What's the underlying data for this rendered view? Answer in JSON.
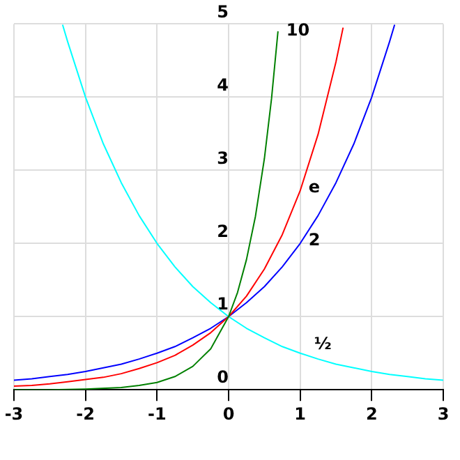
{
  "chart_data": {
    "type": "line",
    "xlim": [
      -3,
      3
    ],
    "xticks": [
      -3,
      -2,
      -1,
      0,
      1,
      2,
      3
    ],
    "ylim": [
      0,
      5
    ],
    "yticks": [
      0,
      1,
      2,
      3,
      4,
      5
    ],
    "grid": true,
    "legend": false,
    "marker": "none",
    "line_style": "solid",
    "series": [
      {
        "name": "10",
        "color": "#008000",
        "x": [
          -3,
          -2.5,
          -2,
          -1.5,
          -1.25,
          -1,
          -0.75,
          -0.5,
          -0.25,
          0,
          0.125,
          0.25,
          0.375,
          0.5,
          0.6,
          0.69
        ],
        "values": [
          0,
          0,
          0.01,
          0.03,
          0.06,
          0.1,
          0.18,
          0.32,
          0.56,
          1,
          1.33,
          1.78,
          2.37,
          3.16,
          3.98,
          4.9
        ]
      },
      {
        "name": "e",
        "color": "#ff0000",
        "x": [
          -3,
          -2.75,
          -2.5,
          -2.25,
          -2,
          -1.75,
          -1.5,
          -1.25,
          -1,
          -0.75,
          -0.5,
          -0.25,
          0,
          0.25,
          0.5,
          0.75,
          1,
          1.25,
          1.5,
          1.6
        ],
        "values": [
          0.05,
          0.06,
          0.08,
          0.11,
          0.14,
          0.17,
          0.22,
          0.29,
          0.37,
          0.47,
          0.61,
          0.78,
          1,
          1.28,
          1.65,
          2.12,
          2.72,
          3.49,
          4.48,
          4.95
        ]
      },
      {
        "name": "2",
        "color": "#0000ff",
        "x": [
          -3,
          -2.75,
          -2.5,
          -2.25,
          -2,
          -1.75,
          -1.5,
          -1.25,
          -1,
          -0.75,
          -0.5,
          -0.25,
          0,
          0.25,
          0.5,
          0.75,
          1,
          1.25,
          1.5,
          1.75,
          2,
          2.25,
          2.32
        ],
        "values": [
          0.13,
          0.15,
          0.18,
          0.21,
          0.25,
          0.3,
          0.35,
          0.42,
          0.5,
          0.59,
          0.71,
          0.84,
          1,
          1.19,
          1.41,
          1.68,
          2,
          2.38,
          2.83,
          3.36,
          4,
          4.76,
          4.99
        ]
      },
      {
        "name": "½",
        "color": "#00ffff",
        "x": [
          -2.32,
          -2.25,
          -2,
          -1.75,
          -1.5,
          -1.25,
          -1,
          -0.75,
          -0.5,
          -0.25,
          0,
          0.25,
          0.5,
          0.75,
          1,
          1.25,
          1.5,
          1.75,
          2,
          2.25,
          2.5,
          2.75,
          3
        ],
        "values": [
          4.99,
          4.76,
          4,
          3.36,
          2.83,
          2.38,
          2,
          1.68,
          1.41,
          1.19,
          1,
          0.84,
          0.71,
          0.59,
          0.5,
          0.42,
          0.35,
          0.3,
          0.25,
          0.21,
          0.18,
          0.15,
          0.13
        ]
      }
    ]
  }
}
